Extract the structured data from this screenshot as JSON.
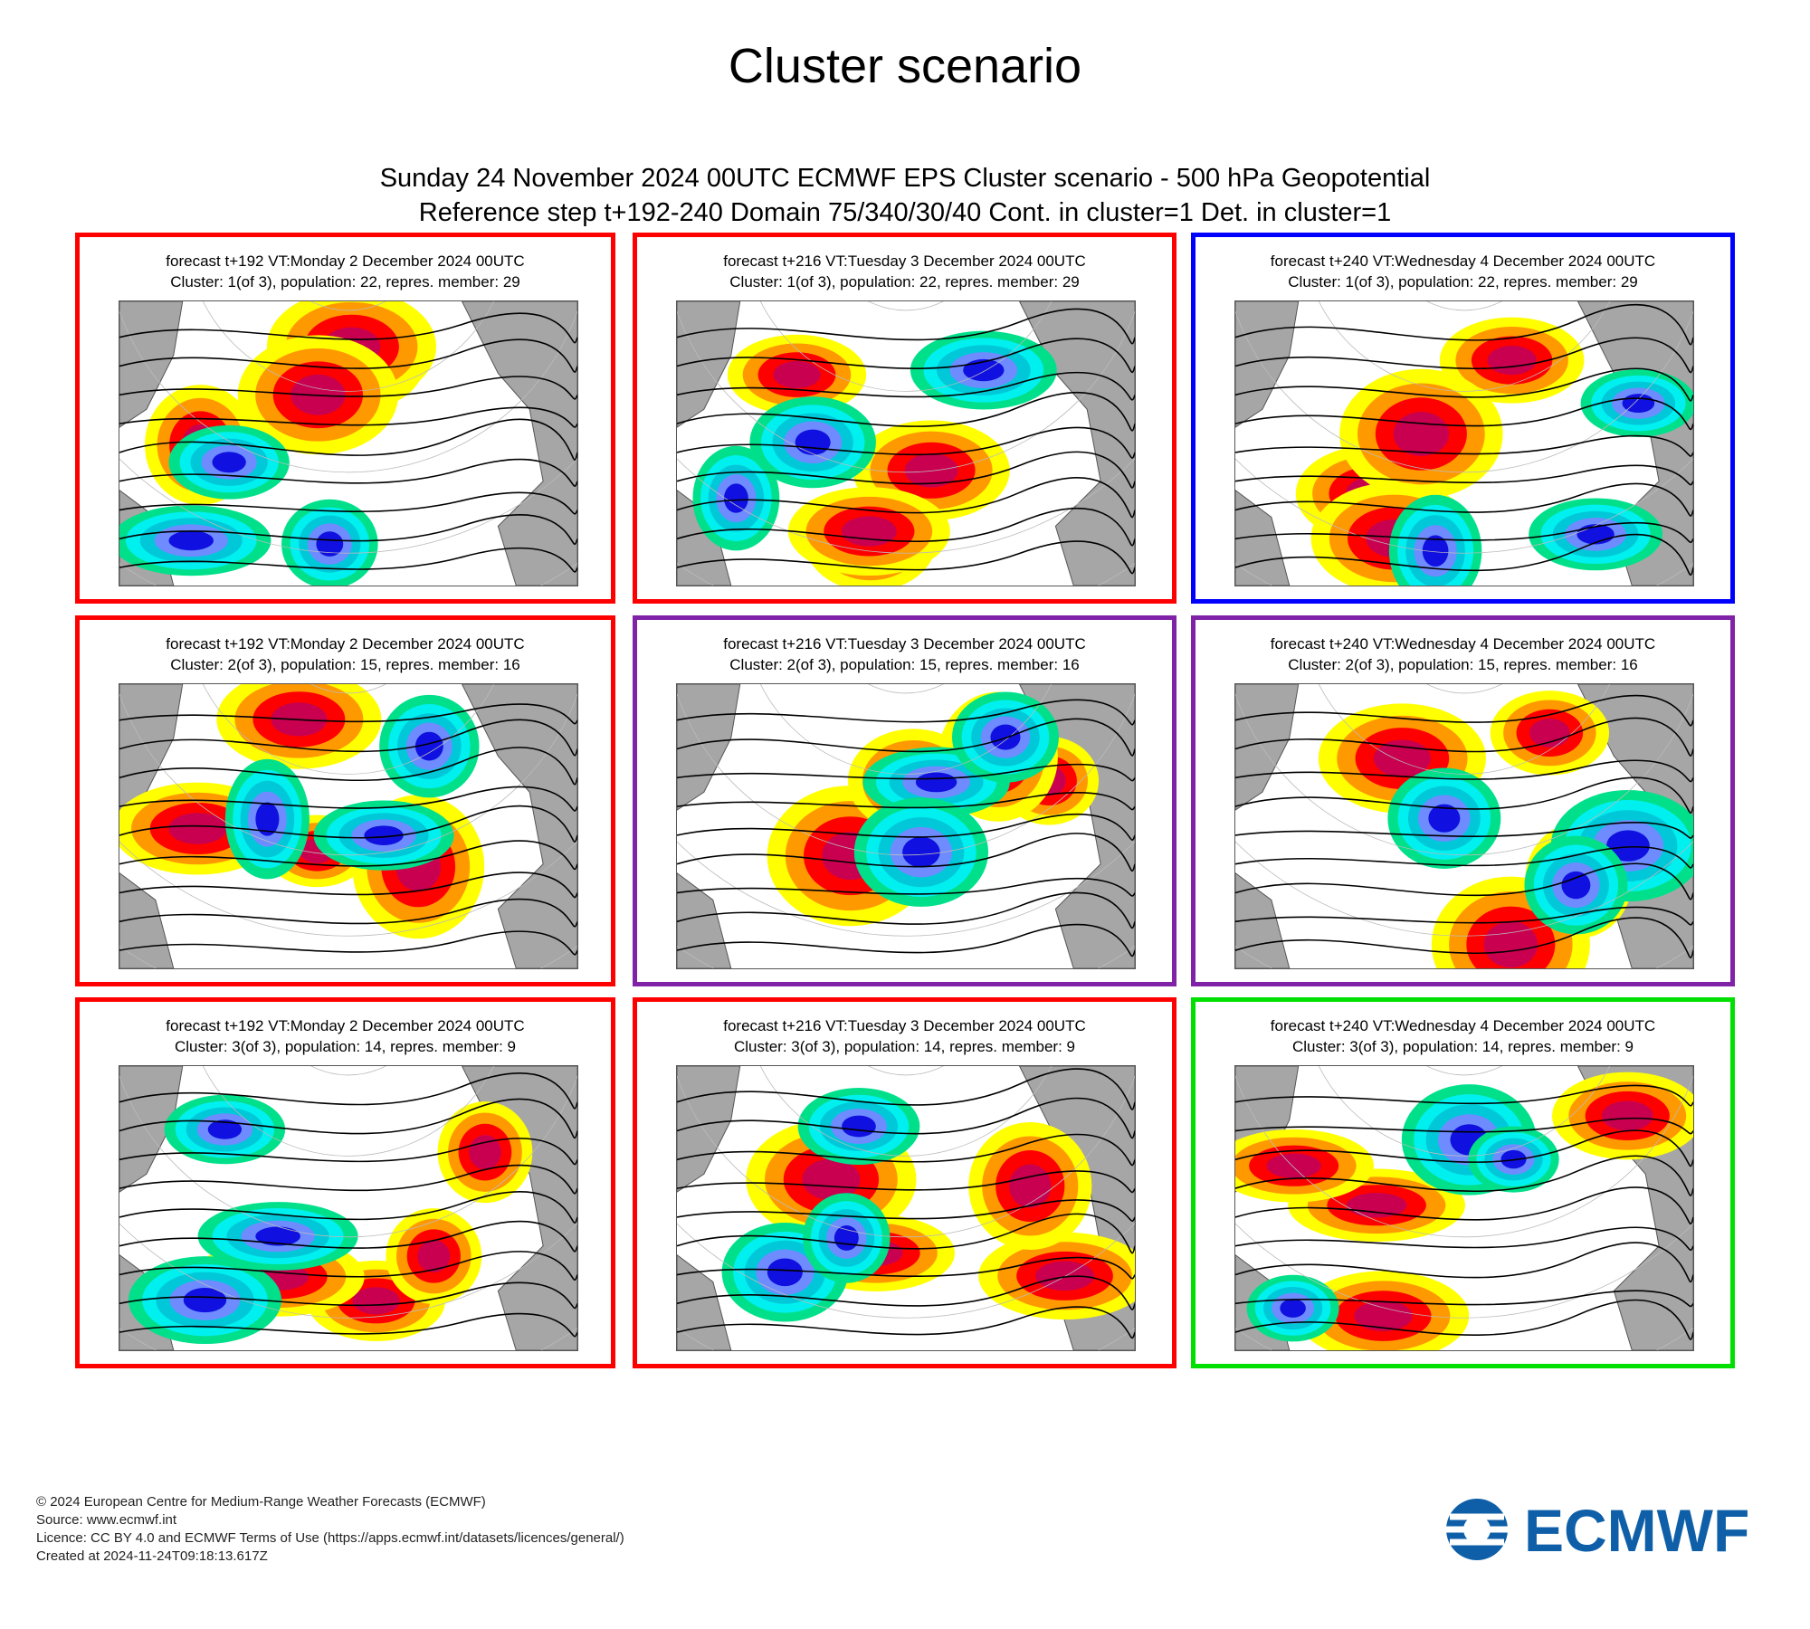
{
  "page_title": "Cluster scenario",
  "header": {
    "line1": "Sunday 24 November 2024 00UTC ECMWF EPS Cluster scenario - 500 hPa Geopotential",
    "line2": "Reference step t+192-240 Domain 75/340/30/40 Cont. in cluster=1 Det. in cluster=1"
  },
  "colors": {
    "red": "#ff0000",
    "blue": "#0000ff",
    "purple": "#7f22a8",
    "green": "#00e000"
  },
  "panels": [
    {
      "line1": "forecast t+192 VT:Monday 2 December 2024 00UTC",
      "line2": "Cluster: 1(of 3), population: 22, repres. member: 29",
      "border_color": "red"
    },
    {
      "line1": "forecast t+216 VT:Tuesday 3 December 2024 00UTC",
      "line2": "Cluster: 1(of 3), population: 22, repres. member: 29",
      "border_color": "red"
    },
    {
      "line1": "forecast t+240 VT:Wednesday 4 December 2024 00UTC",
      "line2": "Cluster: 1(of 3), population: 22, repres. member: 29",
      "border_color": "blue"
    },
    {
      "line1": "forecast t+192 VT:Monday 2 December 2024 00UTC",
      "line2": "Cluster: 2(of 3), population: 15, repres. member: 16",
      "border_color": "red"
    },
    {
      "line1": "forecast t+216 VT:Tuesday 3 December 2024 00UTC",
      "line2": "Cluster: 2(of 3), population: 15, repres. member: 16",
      "border_color": "purple"
    },
    {
      "line1": "forecast t+240 VT:Wednesday 4 December 2024 00UTC",
      "line2": "Cluster: 2(of 3), population: 15, repres. member: 16",
      "border_color": "purple"
    },
    {
      "line1": "forecast t+192 VT:Monday 2 December 2024 00UTC",
      "line2": "Cluster: 3(of 3), population: 14, repres. member: 9",
      "border_color": "red"
    },
    {
      "line1": "forecast t+216 VT:Tuesday 3 December 2024 00UTC",
      "line2": "Cluster: 3(of 3), population: 14, repres. member: 9",
      "border_color": "red"
    },
    {
      "line1": "forecast t+240 VT:Wednesday 4 December 2024 00UTC",
      "line2": "Cluster: 3(of 3), population: 14, repres. member: 9",
      "border_color": "green"
    }
  ],
  "footer": {
    "line1": "© 2024 European Centre for Medium-Range Weather Forecasts (ECMWF)",
    "line2": "Source: www.ecmwf.int",
    "line3": "Licence: CC BY 4.0 and ECMWF Terms of Use (https://apps.ecmwf.int/datasets/licences/general/)",
    "line4": "Created at 2024-11-24T09:18:13.617Z"
  },
  "logo_text": "ECMWF"
}
